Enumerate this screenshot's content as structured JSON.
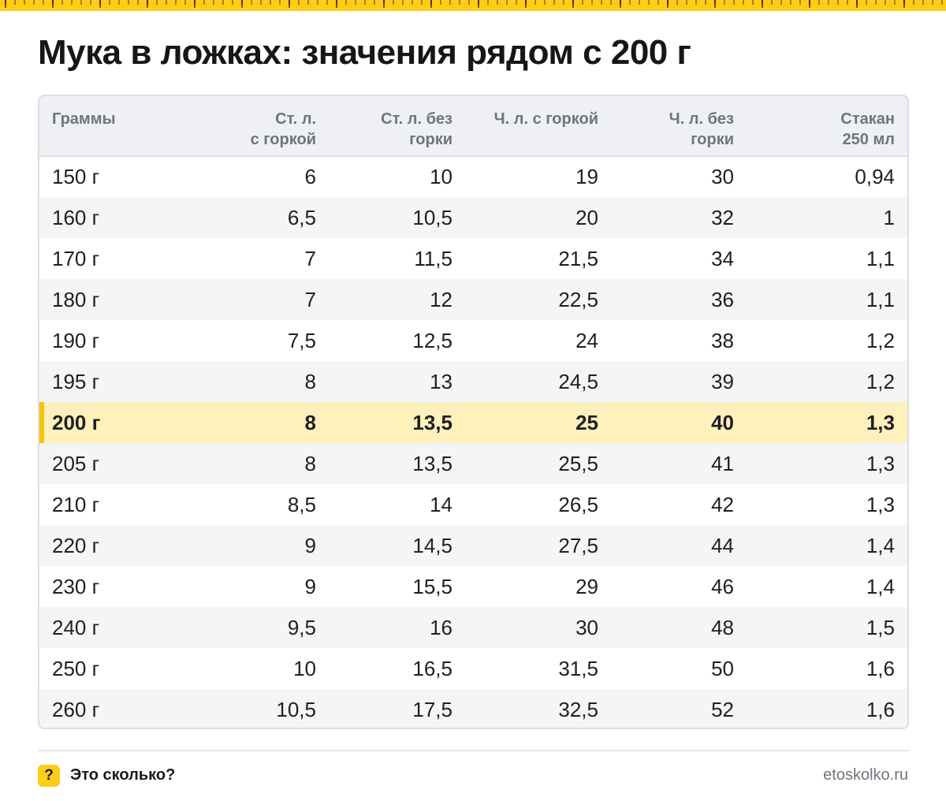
{
  "title": "Мука в ложках: значения рядом с 200 г",
  "colors": {
    "accent": "#fecd18",
    "highlight_row": "#fff1bc",
    "header_bg": "#eef0f3"
  },
  "table": {
    "headers": [
      [
        "Граммы"
      ],
      [
        "Ст. л.",
        "с горкой"
      ],
      [
        "Ст. л. без",
        "горки"
      ],
      [
        "Ч. л. с горкой"
      ],
      [
        "Ч. л. без",
        "горки"
      ],
      [
        "Стакан",
        "250 мл"
      ]
    ],
    "highlight_row_index": 6,
    "rows": [
      [
        "150 г",
        "6",
        "10",
        "19",
        "30",
        "0,94"
      ],
      [
        "160 г",
        "6,5",
        "10,5",
        "20",
        "32",
        "1"
      ],
      [
        "170 г",
        "7",
        "11,5",
        "21,5",
        "34",
        "1,1"
      ],
      [
        "180 г",
        "7",
        "12",
        "22,5",
        "36",
        "1,1"
      ],
      [
        "190 г",
        "7,5",
        "12,5",
        "24",
        "38",
        "1,2"
      ],
      [
        "195 г",
        "8",
        "13",
        "24,5",
        "39",
        "1,2"
      ],
      [
        "200 г",
        "8",
        "13,5",
        "25",
        "40",
        "1,3"
      ],
      [
        "205 г",
        "8",
        "13,5",
        "25,5",
        "41",
        "1,3"
      ],
      [
        "210 г",
        "8,5",
        "14",
        "26,5",
        "42",
        "1,3"
      ],
      [
        "220 г",
        "9",
        "14,5",
        "27,5",
        "44",
        "1,4"
      ],
      [
        "230 г",
        "9",
        "15,5",
        "29",
        "46",
        "1,4"
      ],
      [
        "240 г",
        "9,5",
        "16",
        "30",
        "48",
        "1,5"
      ],
      [
        "250 г",
        "10",
        "16,5",
        "31,5",
        "50",
        "1,6"
      ],
      [
        "260 г",
        "10,5",
        "17,5",
        "32,5",
        "52",
        "1,6"
      ]
    ]
  },
  "footer": {
    "badge": "?",
    "badge_icon": "question-mark-icon",
    "brand": "Это сколько?",
    "url": "etoskolko.ru"
  }
}
